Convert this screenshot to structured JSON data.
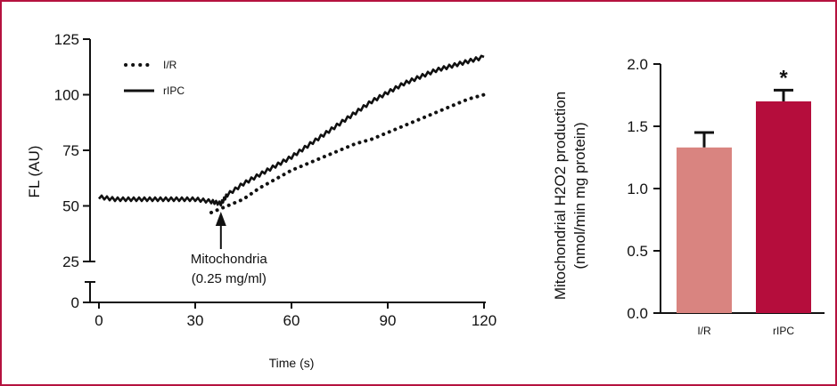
{
  "colors": {
    "frame": "#b5123f",
    "ir_bar": "#d98480",
    "ripc_bar": "#b50d3c",
    "line": "#111111"
  },
  "chart_data": [
    {
      "type": "line",
      "xlabel": "Time (s)",
      "ylabel": "FL (AU)",
      "xlim": [
        0,
        120
      ],
      "ylim": [
        0,
        125
      ],
      "axis_break": [
        10,
        25
      ],
      "x_ticks": [
        "0",
        "30",
        "60",
        "90",
        "120"
      ],
      "y_ticks": [
        "0",
        "25",
        "50",
        "75",
        "100",
        "125"
      ],
      "annotation": {
        "text_line1": "Mitochondria",
        "text_line2": "(0.25 mg/ml)",
        "x": 38
      },
      "legend": {
        "position": "top-left",
        "ir_label": "I/R",
        "ripc_label": "rIPC"
      },
      "series": [
        {
          "name": "I/R",
          "style": "dotted",
          "x": [
            35,
            40,
            45,
            50,
            55,
            60,
            65,
            70,
            75,
            80,
            85,
            90,
            95,
            100,
            105,
            110,
            115,
            120
          ],
          "y": [
            47,
            50,
            53,
            58,
            62,
            66,
            69,
            72,
            75,
            78,
            80,
            83,
            86,
            89,
            92,
            95,
            98,
            100
          ]
        },
        {
          "name": "rIPC",
          "style": "solid",
          "x": [
            0,
            5,
            10,
            15,
            20,
            25,
            30,
            35,
            38,
            40,
            45,
            50,
            55,
            60,
            65,
            70,
            75,
            80,
            85,
            90,
            95,
            100,
            105,
            110,
            115,
            120
          ],
          "y": [
            54,
            53,
            53,
            53,
            53,
            53,
            53,
            52,
            51,
            55,
            60,
            64,
            68,
            72,
            77,
            82,
            87,
            92,
            97,
            101,
            105,
            108,
            111,
            113,
            115,
            117
          ]
        }
      ]
    },
    {
      "type": "bar",
      "ylabel": "Mitochondrial H2O2 production (nmol/min mg protein)",
      "ylabel_line1": "Mitochondrial H2O2 production",
      "ylabel_line2": "(nmol/min mg protein)",
      "ylim": [
        0,
        2.0
      ],
      "y_ticks": [
        "0.0",
        "0.5",
        "1.0",
        "1.5",
        "2.0"
      ],
      "categories": [
        "I/R",
        "rIPC"
      ],
      "values": [
        1.33,
        1.7
      ],
      "errors": [
        0.12,
        0.09
      ],
      "significance": [
        "",
        "*"
      ]
    }
  ]
}
